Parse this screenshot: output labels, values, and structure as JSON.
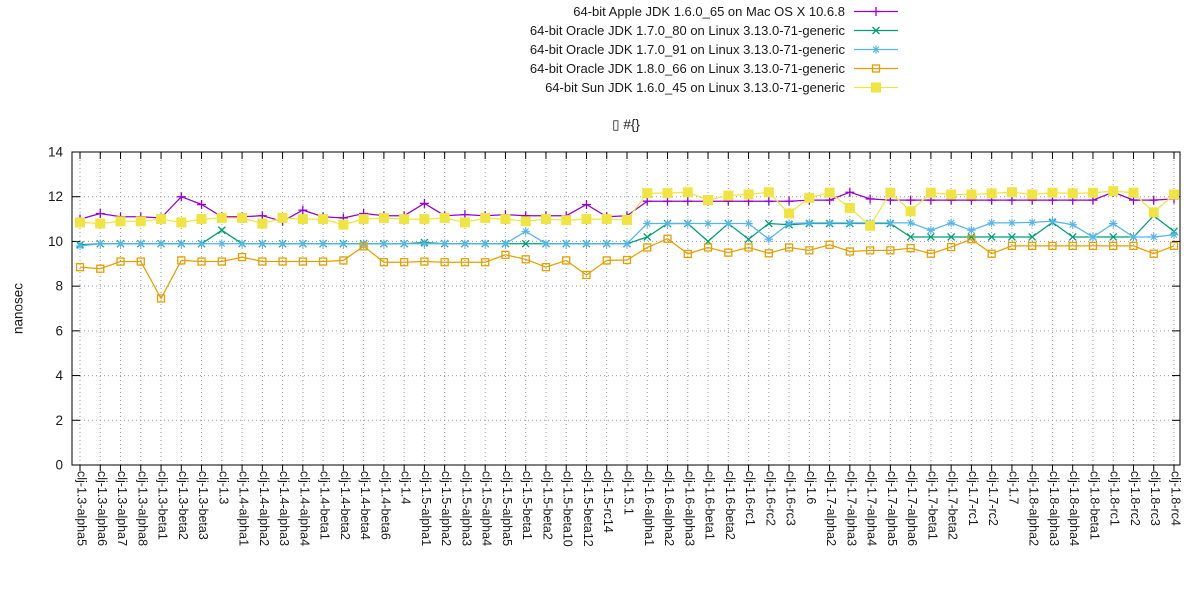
{
  "chart_data": {
    "type": "line",
    "title": "▯ #{}",
    "ylabel": "nanosec",
    "ylim": [
      0,
      14
    ],
    "yticks": [
      0,
      2,
      4,
      6,
      8,
      10,
      12,
      14
    ],
    "grid": true,
    "grid_color": "#9a9a9a",
    "axis_color": "#000000",
    "text_color": "#1a1a1a",
    "legend_position": "top-center-outside-right-aligned",
    "categories": [
      "clj-1.3-alpha5",
      "clj-1.3-alpha6",
      "clj-1.3-alpha7",
      "clj-1.3-alpha8",
      "clj-1.3-beta1",
      "clj-1.3-beta2",
      "clj-1.3-beta3",
      "clj-1.3",
      "clj-1.4-alpha1",
      "clj-1.4-alpha2",
      "clj-1.4-alpha3",
      "clj-1.4-alpha4",
      "clj-1.4-beta1",
      "clj-1.4-beta2",
      "clj-1.4-beta4",
      "clj-1.4-beta6",
      "clj-1.4",
      "clj-1.5-alpha1",
      "clj-1.5-alpha2",
      "clj-1.5-alpha3",
      "clj-1.5-alpha4",
      "clj-1.5-alpha5",
      "clj-1.5-beta1",
      "clj-1.5-beta2",
      "clj-1.5-beta10",
      "clj-1.5-beta12",
      "clj-1.5-rc14",
      "clj-1.5.1",
      "clj-1.6-alpha1",
      "clj-1.6-alpha2",
      "clj-1.6-alpha3",
      "clj-1.6-beta1",
      "clj-1.6-beta2",
      "clj-1.6-rc1",
      "clj-1.6-rc2",
      "clj-1.6-rc3",
      "clj-1.6",
      "clj-1.7-alpha2",
      "clj-1.7-alpha3",
      "clj-1.7-alpha4",
      "clj-1.7-alpha5",
      "clj-1.7-alpha6",
      "clj-1.7-beta1",
      "clj-1.7-beta2",
      "clj-1.7-rc1",
      "clj-1.7-rc2",
      "clj-1.7",
      "clj-1.8-alpha2",
      "clj-1.8-alpha3",
      "clj-1.8-alpha4",
      "clj-1.8-beta1",
      "clj-1.8-rc1",
      "clj-1.8-rc2",
      "clj-1.8-rc3",
      "clj-1.8-rc4"
    ],
    "series": [
      {
        "name": "64-bit Apple JDK 1.6.0_65 on Mac OS X 10.6.8",
        "color": "#9400D3",
        "marker": "plus-marker",
        "values": [
          11.0,
          11.25,
          11.1,
          11.1,
          11.05,
          12.0,
          11.65,
          11.1,
          11.1,
          11.15,
          10.9,
          11.4,
          11.1,
          11.05,
          11.25,
          11.15,
          11.15,
          11.7,
          11.15,
          11.2,
          11.15,
          11.2,
          11.15,
          11.15,
          11.15,
          11.65,
          11.1,
          11.15,
          11.8,
          11.8,
          11.8,
          11.8,
          11.8,
          11.8,
          11.8,
          11.8,
          11.85,
          11.85,
          12.2,
          11.9,
          11.85,
          11.85,
          11.85,
          11.85,
          11.85,
          11.85,
          11.85,
          11.85,
          11.85,
          11.85,
          11.85,
          12.2,
          11.85,
          11.85,
          11.9
        ]
      },
      {
        "name": "64-bit Oracle JDK 1.7.0_80 on Linux 3.13.0-71-generic",
        "color": "#009E73",
        "marker": "cross-marker",
        "values": [
          9.85,
          9.9,
          9.9,
          9.9,
          9.9,
          9.9,
          9.9,
          10.5,
          9.9,
          9.9,
          9.9,
          9.9,
          9.9,
          9.9,
          9.9,
          9.9,
          9.9,
          9.95,
          9.9,
          9.9,
          9.9,
          9.9,
          9.9,
          9.9,
          9.9,
          9.9,
          9.9,
          9.9,
          10.2,
          10.8,
          10.8,
          10.0,
          10.8,
          10.1,
          10.8,
          10.75,
          10.8,
          10.8,
          10.8,
          10.8,
          10.8,
          10.2,
          10.2,
          10.2,
          10.2,
          10.2,
          10.2,
          10.2,
          10.85,
          10.2,
          10.2,
          10.2,
          10.2,
          11.15,
          10.45
        ]
      },
      {
        "name": "64-bit Oracle JDK 1.7.0_91 on Linux 3.13.0-71-generic",
        "color": "#56B4E9",
        "marker": "asterisk-marker",
        "values": [
          9.8,
          9.9,
          9.9,
          9.9,
          9.9,
          9.9,
          9.9,
          9.9,
          9.9,
          9.9,
          9.9,
          9.9,
          9.9,
          9.9,
          9.9,
          9.9,
          9.9,
          9.9,
          9.9,
          9.9,
          9.9,
          9.9,
          10.45,
          9.9,
          9.9,
          9.9,
          9.9,
          9.9,
          10.8,
          10.8,
          10.8,
          10.8,
          10.8,
          10.8,
          10.1,
          10.8,
          10.83,
          10.83,
          10.83,
          10.83,
          10.83,
          10.83,
          10.5,
          10.83,
          10.5,
          10.83,
          10.83,
          10.85,
          10.9,
          10.75,
          10.2,
          10.8,
          10.2,
          10.2,
          10.3
        ]
      },
      {
        "name": "64-bit Oracle JDK 1.8.0_66 on Linux 3.13.0-71-generic",
        "color": "#E69F00",
        "marker": "open-square-marker",
        "values": [
          8.85,
          8.78,
          9.1,
          9.1,
          7.45,
          9.15,
          9.1,
          9.1,
          9.3,
          9.1,
          9.1,
          9.1,
          9.1,
          9.15,
          9.78,
          9.07,
          9.07,
          9.1,
          9.07,
          9.07,
          9.07,
          9.4,
          9.2,
          8.85,
          9.15,
          8.5,
          9.15,
          9.17,
          9.73,
          10.12,
          9.44,
          9.73,
          9.5,
          9.73,
          9.47,
          9.73,
          9.6,
          9.85,
          9.55,
          9.6,
          9.6,
          9.7,
          9.45,
          9.75,
          10.1,
          9.45,
          9.8,
          9.8,
          9.8,
          9.8,
          9.8,
          9.8,
          9.8,
          9.45,
          9.8
        ]
      },
      {
        "name": "64-bit Sun JDK 1.6.0_45 on Linux 3.13.0-71-generic",
        "color": "#F0E442",
        "marker": "filled-square-marker",
        "values": [
          10.85,
          10.8,
          10.9,
          10.9,
          11.0,
          10.85,
          11.0,
          11.05,
          11.05,
          10.8,
          11.05,
          11.0,
          11.0,
          10.75,
          11.0,
          11.05,
          11.0,
          11.0,
          11.05,
          10.85,
          11.05,
          11.0,
          10.9,
          11.0,
          10.95,
          11.0,
          11.0,
          10.96,
          12.16,
          12.16,
          12.2,
          11.85,
          12.05,
          12.1,
          12.2,
          11.25,
          11.95,
          12.18,
          11.5,
          10.7,
          12.18,
          11.35,
          12.18,
          12.1,
          12.1,
          12.15,
          12.2,
          12.1,
          12.18,
          12.15,
          12.18,
          12.25,
          12.18,
          11.3,
          12.1
        ]
      }
    ]
  }
}
